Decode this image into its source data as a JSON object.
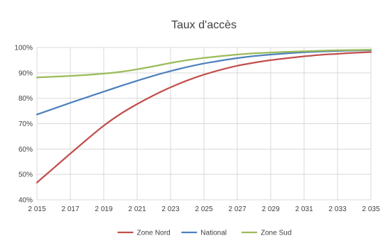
{
  "chart_data": {
    "type": "line",
    "title": "Taux d'accès",
    "x": [
      2015,
      2016,
      2017,
      2018,
      2019,
      2020,
      2021,
      2022,
      2023,
      2024,
      2025,
      2026,
      2027,
      2028,
      2029,
      2030,
      2031,
      2032,
      2033,
      2034,
      2035
    ],
    "x_tick_labels": [
      "2 015",
      "2 017",
      "2 019",
      "2 021",
      "2 023",
      "2 025",
      "2 027",
      "2 029",
      "2 031",
      "2 033",
      "2 035"
    ],
    "y_tick_labels": [
      "40%",
      "50%",
      "60%",
      "70%",
      "80%",
      "90%",
      "100%"
    ],
    "ylim": [
      40,
      100
    ],
    "grid": true,
    "legend_position": "bottom",
    "series": [
      {
        "name": "Zone Nord",
        "color": "#c0504d",
        "values": [
          46.8,
          52.5,
          58.2,
          63.8,
          69.2,
          73.8,
          77.7,
          81.2,
          84.3,
          87.0,
          89.3,
          91.2,
          92.8,
          94.0,
          95.0,
          95.8,
          96.5,
          97.1,
          97.5,
          97.9,
          98.2
        ]
      },
      {
        "name": "National",
        "color": "#4f81bd",
        "values": [
          73.6,
          75.9,
          78.2,
          80.4,
          82.6,
          84.8,
          86.9,
          88.9,
          90.7,
          92.3,
          93.7,
          94.8,
          95.8,
          96.6,
          97.2,
          97.7,
          98.1,
          98.4,
          98.6,
          98.8,
          98.9
        ]
      },
      {
        "name": "Zone Sud",
        "color": "#9bbb59",
        "values": [
          88.2,
          88.5,
          88.8,
          89.2,
          89.7,
          90.4,
          91.4,
          92.6,
          93.9,
          95.0,
          95.9,
          96.6,
          97.2,
          97.7,
          98.0,
          98.3,
          98.5,
          98.7,
          98.9,
          99.0,
          99.1
        ]
      }
    ]
  }
}
